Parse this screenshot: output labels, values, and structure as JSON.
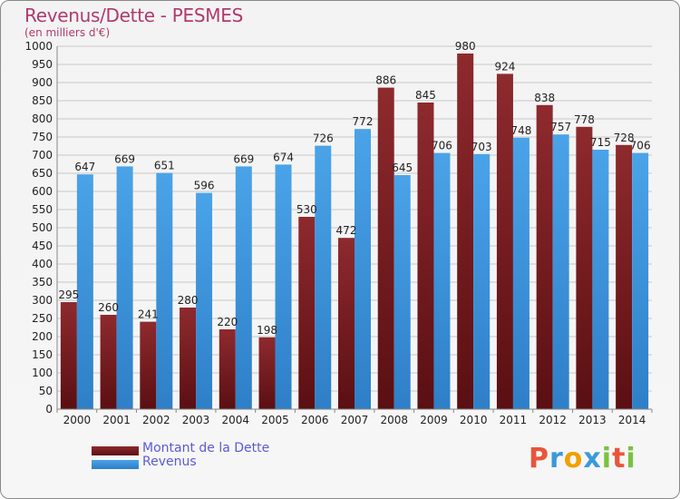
{
  "title": "Revenus/Dette - PESMES",
  "subtitle": "(en milliers d'€)",
  "logo": {
    "text": "Proxiti",
    "letters": [
      {
        "ch": "P",
        "color": "#e8553a"
      },
      {
        "ch": "r",
        "color": "#3a9ad9"
      },
      {
        "ch": "o",
        "color": "#f0a000"
      },
      {
        "ch": "x",
        "color": "#3a9ad9"
      },
      {
        "ch": "i",
        "color": "#7ac142"
      },
      {
        "ch": "t",
        "color": "#e8553a"
      },
      {
        "ch": "i",
        "color": "#7ac142"
      }
    ]
  },
  "colors": {
    "debt": "#8e2a2e",
    "debt_dark": "#5a0f12",
    "revenue": "#4aa3e8",
    "revenue_dark": "#2e7fc7",
    "grid": "#c8c8c8",
    "axis_text": "#222222"
  },
  "chart_data": {
    "type": "bar",
    "categories": [
      "2000",
      "2001",
      "2002",
      "2003",
      "2004",
      "2005",
      "2006",
      "2007",
      "2008",
      "2009",
      "2010",
      "2011",
      "2012",
      "2013",
      "2014"
    ],
    "series": [
      {
        "name": "Montant de la Dette",
        "values": [
          295,
          260,
          241,
          280,
          220,
          198,
          530,
          472,
          886,
          845,
          980,
          924,
          838,
          778,
          728
        ]
      },
      {
        "name": "Revenus",
        "values": [
          647,
          669,
          651,
          596,
          669,
          674,
          726,
          772,
          645,
          706,
          703,
          748,
          757,
          715,
          706
        ]
      }
    ],
    "yticks": [
      0,
      50,
      100,
      150,
      200,
      250,
      300,
      350,
      400,
      450,
      500,
      550,
      600,
      650,
      700,
      750,
      800,
      850,
      900,
      950,
      1000
    ],
    "ylim": [
      0,
      1000
    ],
    "grid": true,
    "legend_position": "bottom-left"
  }
}
